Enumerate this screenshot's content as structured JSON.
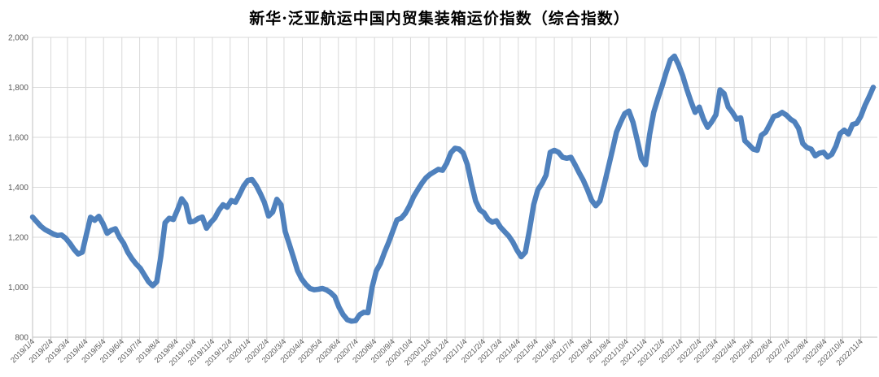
{
  "title": "新华·泛亚航运中国内贸集装箱运价指数（综合指数）",
  "colors": {
    "line": "#4F81BD",
    "gridline": "#D9D9D9",
    "axis": "#BFBFBF",
    "tick_label": "#595959",
    "title": "#000000",
    "background": "#FFFFFF"
  },
  "chart_data": {
    "type": "line",
    "title": "新华·泛亚航运中国内贸集装箱运价指数（综合指数）",
    "xlabel": "",
    "ylabel": "",
    "grid": true,
    "legend_position": "none",
    "y_axis": {
      "min": 800,
      "max": 2000,
      "step": 200,
      "tick_labels": [
        "800",
        "1,000",
        "1,200",
        "1,400",
        "1,600",
        "1,800",
        "2,000"
      ]
    },
    "x_axis": {
      "start_date": "2019/1/4",
      "end_date": "2022/11/4",
      "tick_labels": [
        "2019/1/4",
        "2019/2/4",
        "2019/3/4",
        "2019/4/4",
        "2019/5/4",
        "2019/6/4",
        "2019/7/4",
        "2019/8/4",
        "2019/9/4",
        "2019/10/4",
        "2019/11/4",
        "2019/12/4",
        "2020/1/4",
        "2020/2/4",
        "2020/3/4",
        "2020/4/4",
        "2020/5/4",
        "2020/6/4",
        "2020/7/4",
        "2020/8/4",
        "2020/9/4",
        "2020/10/4",
        "2020/11/4",
        "2020/12/4",
        "2021/1/4",
        "2021/2/4",
        "2021/3/4",
        "2021/4/4",
        "2021/5/4",
        "2021/6/4",
        "2021/7/4",
        "2021/8/4",
        "2021/9/4",
        "2021/10/4",
        "2021/11/4",
        "2021/12/4",
        "2022/1/4",
        "2022/2/4",
        "2022/3/4",
        "2022/4/4",
        "2022/5/4",
        "2022/6/4",
        "2022/7/4",
        "2022/8/4",
        "2022/9/4",
        "2022/10/4",
        "2022/11/4"
      ]
    },
    "series": [
      {
        "name": "综合指数",
        "frequency": "weekly",
        "points": [
          [
            "2019/1/4",
            1281
          ],
          [
            "2019/1/11",
            1262
          ],
          [
            "2019/1/18",
            1244
          ],
          [
            "2019/1/25",
            1231
          ],
          [
            "2019/2/1",
            1222
          ],
          [
            "2019/2/8",
            1213
          ],
          [
            "2019/2/15",
            1207
          ],
          [
            "2019/2/22",
            1209
          ],
          [
            "2019/3/1",
            1196
          ],
          [
            "2019/3/8",
            1176
          ],
          [
            "2019/3/15",
            1152
          ],
          [
            "2019/3/22",
            1133
          ],
          [
            "2019/3/29",
            1140
          ],
          [
            "2019/4/5",
            1210
          ],
          [
            "2019/4/12",
            1280
          ],
          [
            "2019/4/19",
            1268
          ],
          [
            "2019/4/26",
            1284
          ],
          [
            "2019/5/3",
            1255
          ],
          [
            "2019/5/10",
            1216
          ],
          [
            "2019/5/17",
            1228
          ],
          [
            "2019/5/24",
            1234
          ],
          [
            "2019/5/31",
            1200
          ],
          [
            "2019/6/7",
            1176
          ],
          [
            "2019/6/14",
            1140
          ],
          [
            "2019/6/21",
            1114
          ],
          [
            "2019/6/28",
            1093
          ],
          [
            "2019/7/5",
            1076
          ],
          [
            "2019/7/12",
            1049
          ],
          [
            "2019/7/19",
            1022
          ],
          [
            "2019/7/26",
            1006
          ],
          [
            "2019/8/2",
            1022
          ],
          [
            "2019/8/9",
            1125
          ],
          [
            "2019/8/16",
            1258
          ],
          [
            "2019/8/23",
            1276
          ],
          [
            "2019/8/30",
            1271
          ],
          [
            "2019/9/6",
            1310
          ],
          [
            "2019/9/13",
            1354
          ],
          [
            "2019/9/20",
            1332
          ],
          [
            "2019/9/27",
            1261
          ],
          [
            "2019/10/4",
            1264
          ],
          [
            "2019/10/11",
            1275
          ],
          [
            "2019/10/18",
            1281
          ],
          [
            "2019/10/25",
            1236
          ],
          [
            "2019/11/1",
            1259
          ],
          [
            "2019/11/8",
            1277
          ],
          [
            "2019/11/15",
            1308
          ],
          [
            "2019/11/22",
            1330
          ],
          [
            "2019/11/29",
            1320
          ],
          [
            "2019/12/6",
            1347
          ],
          [
            "2019/12/13",
            1340
          ],
          [
            "2019/12/20",
            1372
          ],
          [
            "2019/12/27",
            1406
          ],
          [
            "2020/1/3",
            1428
          ],
          [
            "2020/1/10",
            1431
          ],
          [
            "2020/1/17",
            1407
          ],
          [
            "2020/1/24",
            1375
          ],
          [
            "2020/1/31",
            1339
          ],
          [
            "2020/2/7",
            1285
          ],
          [
            "2020/2/14",
            1301
          ],
          [
            "2020/2/21",
            1352
          ],
          [
            "2020/2/28",
            1330
          ],
          [
            "2020/3/6",
            1223
          ],
          [
            "2020/3/13",
            1172
          ],
          [
            "2020/3/20",
            1119
          ],
          [
            "2020/3/27",
            1066
          ],
          [
            "2020/4/3",
            1033
          ],
          [
            "2020/4/10",
            1011
          ],
          [
            "2020/4/17",
            995
          ],
          [
            "2020/4/24",
            990
          ],
          [
            "2020/5/1",
            992
          ],
          [
            "2020/5/8",
            995
          ],
          [
            "2020/5/15",
            989
          ],
          [
            "2020/5/22",
            978
          ],
          [
            "2020/5/29",
            962
          ],
          [
            "2020/6/5",
            920
          ],
          [
            "2020/6/12",
            890
          ],
          [
            "2020/6/19",
            870
          ],
          [
            "2020/6/26",
            864
          ],
          [
            "2020/7/3",
            866
          ],
          [
            "2020/7/10",
            890
          ],
          [
            "2020/7/17",
            900
          ],
          [
            "2020/7/24",
            898
          ],
          [
            "2020/7/31",
            1000
          ],
          [
            "2020/8/7",
            1065
          ],
          [
            "2020/8/14",
            1095
          ],
          [
            "2020/8/21",
            1140
          ],
          [
            "2020/8/28",
            1180
          ],
          [
            "2020/9/4",
            1225
          ],
          [
            "2020/9/11",
            1270
          ],
          [
            "2020/9/18",
            1276
          ],
          [
            "2020/9/25",
            1295
          ],
          [
            "2020/10/2",
            1325
          ],
          [
            "2020/10/9",
            1362
          ],
          [
            "2020/10/16",
            1390
          ],
          [
            "2020/10/23",
            1416
          ],
          [
            "2020/10/30",
            1438
          ],
          [
            "2020/11/6",
            1452
          ],
          [
            "2020/11/13",
            1462
          ],
          [
            "2020/11/20",
            1472
          ],
          [
            "2020/11/27",
            1468
          ],
          [
            "2020/12/4",
            1496
          ],
          [
            "2020/12/11",
            1538
          ],
          [
            "2020/12/18",
            1556
          ],
          [
            "2020/12/25",
            1553
          ],
          [
            "2021/1/1",
            1537
          ],
          [
            "2021/1/8",
            1490
          ],
          [
            "2021/1/15",
            1412
          ],
          [
            "2021/1/22",
            1345
          ],
          [
            "2021/1/29",
            1310
          ],
          [
            "2021/2/5",
            1298
          ],
          [
            "2021/2/12",
            1272
          ],
          [
            "2021/2/19",
            1260
          ],
          [
            "2021/2/26",
            1266
          ],
          [
            "2021/3/5",
            1240
          ],
          [
            "2021/3/12",
            1222
          ],
          [
            "2021/3/19",
            1205
          ],
          [
            "2021/3/26",
            1180
          ],
          [
            "2021/4/2",
            1148
          ],
          [
            "2021/4/9",
            1122
          ],
          [
            "2021/4/16",
            1140
          ],
          [
            "2021/4/23",
            1230
          ],
          [
            "2021/4/30",
            1330
          ],
          [
            "2021/5/7",
            1390
          ],
          [
            "2021/5/14",
            1415
          ],
          [
            "2021/5/21",
            1448
          ],
          [
            "2021/5/28",
            1540
          ],
          [
            "2021/6/4",
            1548
          ],
          [
            "2021/6/11",
            1540
          ],
          [
            "2021/6/18",
            1520
          ],
          [
            "2021/6/25",
            1516
          ],
          [
            "2021/7/2",
            1520
          ],
          [
            "2021/7/9",
            1490
          ],
          [
            "2021/7/16",
            1458
          ],
          [
            "2021/7/23",
            1428
          ],
          [
            "2021/7/30",
            1390
          ],
          [
            "2021/8/6",
            1348
          ],
          [
            "2021/8/13",
            1326
          ],
          [
            "2021/8/20",
            1345
          ],
          [
            "2021/8/27",
            1408
          ],
          [
            "2021/9/3",
            1478
          ],
          [
            "2021/9/10",
            1548
          ],
          [
            "2021/9/17",
            1620
          ],
          [
            "2021/9/24",
            1660
          ],
          [
            "2021/10/1",
            1695
          ],
          [
            "2021/10/8",
            1705
          ],
          [
            "2021/10/15",
            1660
          ],
          [
            "2021/10/22",
            1590
          ],
          [
            "2021/10/29",
            1515
          ],
          [
            "2021/11/5",
            1490
          ],
          [
            "2021/11/12",
            1610
          ],
          [
            "2021/11/19",
            1700
          ],
          [
            "2021/11/26",
            1755
          ],
          [
            "2021/12/3",
            1805
          ],
          [
            "2021/12/10",
            1860
          ],
          [
            "2021/12/17",
            1910
          ],
          [
            "2021/12/24",
            1925
          ],
          [
            "2021/12/31",
            1890
          ],
          [
            "2022/1/7",
            1846
          ],
          [
            "2022/1/14",
            1792
          ],
          [
            "2022/1/21",
            1743
          ],
          [
            "2022/1/28",
            1700
          ],
          [
            "2022/2/4",
            1721
          ],
          [
            "2022/2/11",
            1673
          ],
          [
            "2022/2/18",
            1640
          ],
          [
            "2022/2/25",
            1662
          ],
          [
            "2022/3/4",
            1690
          ],
          [
            "2022/3/11",
            1790
          ],
          [
            "2022/3/18",
            1775
          ],
          [
            "2022/3/25",
            1721
          ],
          [
            "2022/4/1",
            1700
          ],
          [
            "2022/4/8",
            1673
          ],
          [
            "2022/4/15",
            1678
          ],
          [
            "2022/4/22",
            1586
          ],
          [
            "2022/4/29",
            1570
          ],
          [
            "2022/5/6",
            1553
          ],
          [
            "2022/5/13",
            1548
          ],
          [
            "2022/5/20",
            1608
          ],
          [
            "2022/5/27",
            1620
          ],
          [
            "2022/6/3",
            1651
          ],
          [
            "2022/6/10",
            1684
          ],
          [
            "2022/6/17",
            1689
          ],
          [
            "2022/6/24",
            1700
          ],
          [
            "2022/7/1",
            1689
          ],
          [
            "2022/7/8",
            1673
          ],
          [
            "2022/7/15",
            1662
          ],
          [
            "2022/7/22",
            1635
          ],
          [
            "2022/7/29",
            1575
          ],
          [
            "2022/8/5",
            1559
          ],
          [
            "2022/8/12",
            1553
          ],
          [
            "2022/8/19",
            1526
          ],
          [
            "2022/8/26",
            1537
          ],
          [
            "2022/9/2",
            1540
          ],
          [
            "2022/9/9",
            1521
          ],
          [
            "2022/9/16",
            1532
          ],
          [
            "2022/9/23",
            1565
          ],
          [
            "2022/9/30",
            1615
          ],
          [
            "2022/10/7",
            1629
          ],
          [
            "2022/10/14",
            1613
          ],
          [
            "2022/10/21",
            1651
          ],
          [
            "2022/10/28",
            1656
          ],
          [
            "2022/11/4",
            1684
          ],
          [
            "2022/11/11",
            1727
          ],
          [
            "2022/11/18",
            1762
          ],
          [
            "2022/11/25",
            1800
          ]
        ]
      }
    ]
  }
}
